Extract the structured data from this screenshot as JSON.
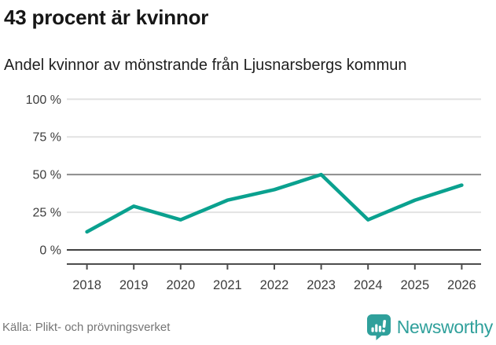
{
  "header": {
    "title": "43 procent är kvinnor",
    "subtitle": "Andel kvinnor av mönstrande från Ljusnarsbergs kommun"
  },
  "chart_data": {
    "type": "line",
    "title": "43 procent är kvinnor",
    "subtitle": "Andel kvinnor av mönstrande från Ljusnarsbergs kommun",
    "x": [
      "2018",
      "2019",
      "2020",
      "2021",
      "2022",
      "2023",
      "2024",
      "2025",
      "2026"
    ],
    "series": [
      {
        "name": "Andel kvinnor av mönstrande",
        "values": [
          12,
          29,
          20,
          33,
          40,
          50,
          20,
          33,
          43
        ]
      }
    ],
    "unit": "%",
    "ylim": [
      0,
      100
    ],
    "yticks": [
      0,
      25,
      50,
      75,
      100
    ],
    "ytick_labels": [
      "0 %",
      "25 %",
      "50 %",
      "75 %",
      "100 %"
    ],
    "grid": "horizontal",
    "legend": "none",
    "colors": {
      "line": "#0aa18f",
      "gridline_light": "#e2e2e2",
      "gridline_mid": "#8c8c8c",
      "gridline_zero": "#404040",
      "axis": "#4d4d4d",
      "tick_label": "#3d3d3d"
    }
  },
  "footer": {
    "source": "Källa: Plikt- och prövningsverket",
    "brand": {
      "name": "Newsworthy",
      "icon": "newsworthy-badge-icon",
      "color": "#2fa09b"
    }
  }
}
